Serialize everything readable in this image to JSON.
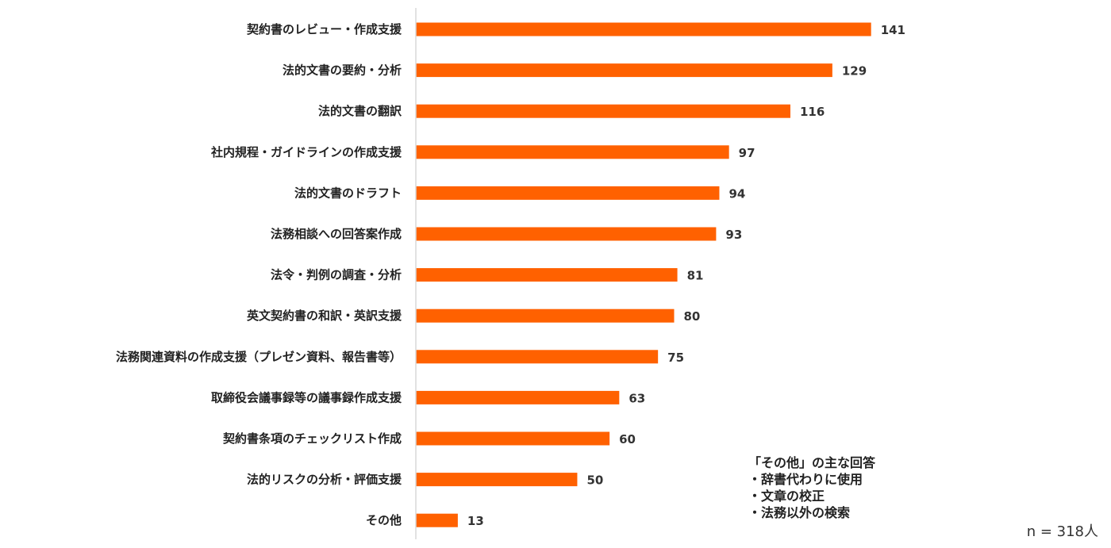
{
  "chart_data": {
    "type": "bar",
    "orientation": "horizontal",
    "categories": [
      "契約書のレビュー・作成支援",
      "法的文書の要約・分析",
      "法的文書の翻訳",
      "社内規程・ガイドラインの作成支援",
      "法的文書のドラフト",
      "法務相談への回答案作成",
      "法令・判例の調査・分析",
      "英文契約書の和訳・英訳支援",
      "法務関連資料の作成支援（プレゼン資料、報告書等）",
      "取締役会議事録等の議事録作成支援",
      "契約書条項のチェックリスト作成",
      "法的リスクの分析・評価支援",
      "その他"
    ],
    "values": [
      141,
      129,
      116,
      97,
      94,
      93,
      81,
      80,
      75,
      63,
      60,
      50,
      13
    ],
    "xlim": [
      0,
      160
    ],
    "grid": false,
    "legend": "none",
    "bar_color": "#ff6100",
    "data_labels": true
  },
  "note": {
    "title": "「その他」の主な回答",
    "items": [
      "・辞書代わりに使用",
      "・文章の校正",
      "・法務以外の検索"
    ]
  },
  "sample_size": "n = 318人"
}
